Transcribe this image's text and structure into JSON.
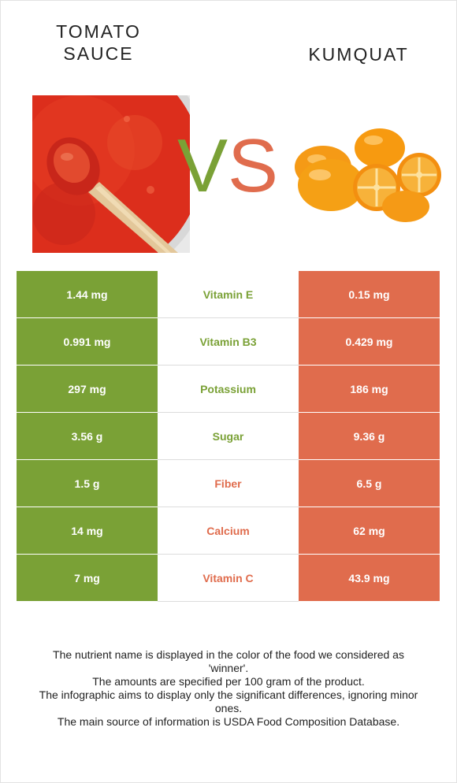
{
  "left_food": {
    "title": "TOMATO\nSAUCE",
    "color": "#7aa136"
  },
  "right_food": {
    "title": "KUMQUAT",
    "color": "#e06c4d"
  },
  "vs": {
    "v": "V",
    "s": "S"
  },
  "rows": [
    {
      "left": "1.44 mg",
      "name": "Vitamin E",
      "right": "0.15 mg",
      "winner": "left"
    },
    {
      "left": "0.991 mg",
      "name": "Vitamin B3",
      "right": "0.429 mg",
      "winner": "left"
    },
    {
      "left": "297 mg",
      "name": "Potassium",
      "right": "186 mg",
      "winner": "left"
    },
    {
      "left": "3.56 g",
      "name": "Sugar",
      "right": "9.36 g",
      "winner": "left"
    },
    {
      "left": "1.5 g",
      "name": "Fiber",
      "right": "6.5 g",
      "winner": "right"
    },
    {
      "left": "14 mg",
      "name": "Calcium",
      "right": "62 mg",
      "winner": "right"
    },
    {
      "left": "7 mg",
      "name": "Vitamin C",
      "right": "43.9 mg",
      "winner": "right"
    }
  ],
  "notes": [
    "The nutrient name is displayed in the color of the food we considered as 'winner'.",
    "The amounts are specified per 100 gram of the product.",
    "The infographic aims to display only the significant differences, ignoring minor ones.",
    "The main source of information is USDA Food Composition Database."
  ]
}
